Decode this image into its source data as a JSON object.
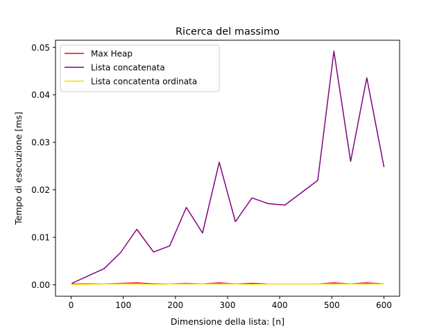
{
  "chart_data": {
    "type": "line",
    "title": "Ricerca del massimo",
    "xlabel": "Dimensione della lista: [n]",
    "ylabel": "Tempo di esecuzione [ms]",
    "xlim": [
      -30,
      630
    ],
    "ylim": [
      -0.0024,
      0.0515
    ],
    "xticks": [
      0,
      100,
      200,
      300,
      400,
      500,
      600
    ],
    "xtick_labels": [
      "0",
      "100",
      "200",
      "300",
      "400",
      "500",
      "600"
    ],
    "yticks": [
      0.0,
      0.01,
      0.02,
      0.03,
      0.04,
      0.05
    ],
    "ytick_labels": [
      "0.00",
      "0.01",
      "0.02",
      "0.03",
      "0.04",
      "0.05"
    ],
    "grid": false,
    "legend_position": "top-left",
    "series": [
      {
        "name": "Max Heap",
        "color": "#ff0000",
        "x": [
          1,
          32,
          63,
          95,
          126,
          158,
          189,
          221,
          252,
          284,
          315,
          347,
          378,
          410,
          441,
          473,
          504,
          536,
          567,
          600
        ],
        "y": [
          0.0002,
          0.0002,
          0.0002,
          0.0003,
          0.0004,
          0.0002,
          0.0002,
          0.0003,
          0.0002,
          0.0004,
          0.0002,
          0.0003,
          0.0002,
          0.0002,
          0.0002,
          0.0002,
          0.0004,
          0.0002,
          0.0004,
          0.0002
        ]
      },
      {
        "name": "Lista concatenata",
        "color": "#800080",
        "x": [
          1,
          63,
          95,
          126,
          158,
          189,
          221,
          252,
          284,
          315,
          347,
          378,
          410,
          473,
          504,
          536,
          567,
          600
        ],
        "y": [
          0.0003,
          0.0034,
          0.0068,
          0.0117,
          0.0069,
          0.0082,
          0.0163,
          0.0109,
          0.0258,
          0.0133,
          0.0183,
          0.0171,
          0.0168,
          0.022,
          0.0492,
          0.026,
          0.0436,
          0.0248
        ]
      },
      {
        "name": "Lista concatenta ordinata",
        "color": "#ffd700",
        "x": [
          1,
          32,
          63,
          95,
          126,
          158,
          189,
          221,
          252,
          284,
          315,
          347,
          378,
          410,
          441,
          473,
          504,
          536,
          567,
          600
        ],
        "y": [
          0.0001,
          0.0001,
          0.0002,
          0.0002,
          0.0002,
          0.0001,
          0.0002,
          0.0002,
          0.0002,
          0.0002,
          0.0002,
          0.0001,
          0.0002,
          0.0002,
          0.0002,
          0.0002,
          0.0002,
          0.0002,
          0.0002,
          0.0002
        ]
      }
    ]
  }
}
